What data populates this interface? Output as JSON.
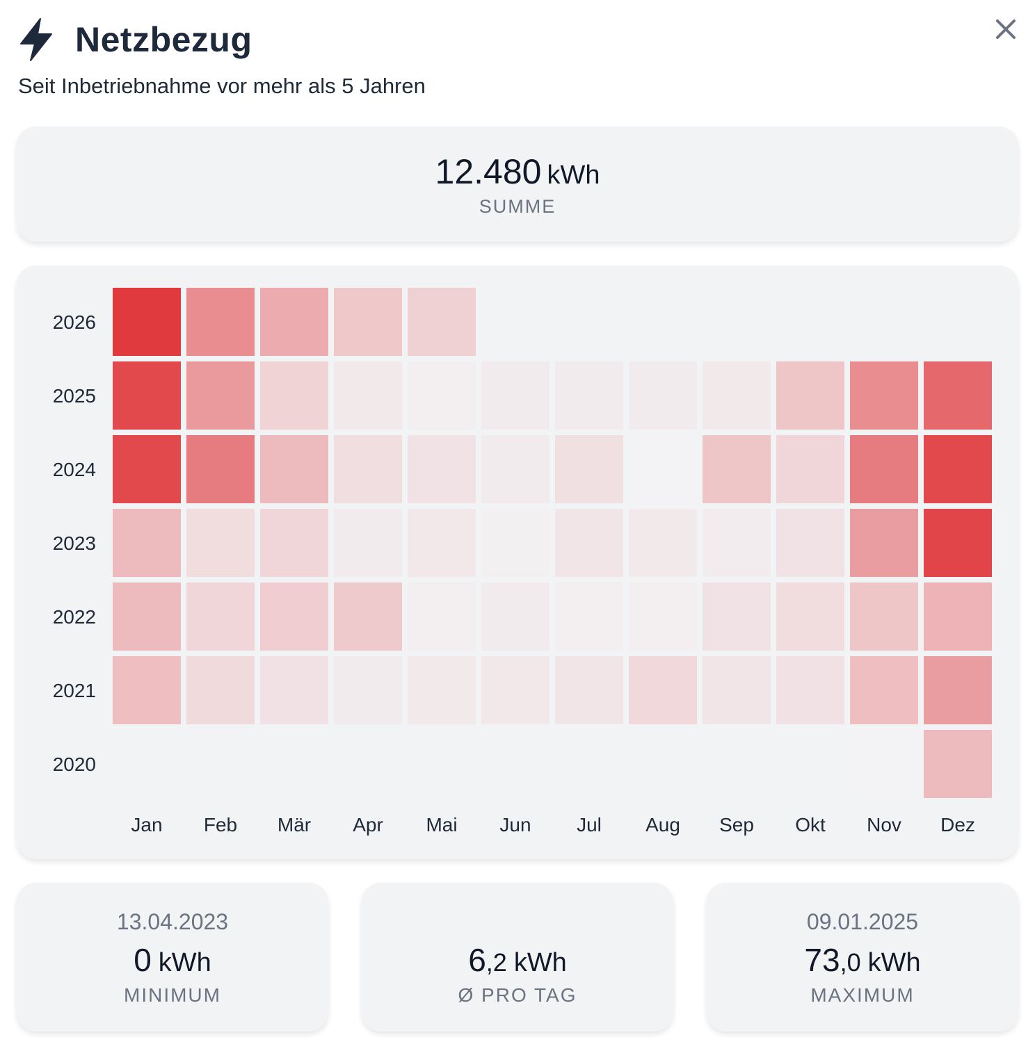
{
  "header": {
    "title": "Netzbezug",
    "subtitle": "Seit Inbetriebnahme vor mehr als 5 Jahren",
    "icon": "bolt-icon",
    "close_icon": "close-icon"
  },
  "summary": {
    "value": "12.480",
    "unit": "kWh",
    "label": "SUMME"
  },
  "stats": {
    "minimum": {
      "date": "13.04.2023",
      "int": "0",
      "dec": "",
      "unit": "kWh",
      "label": "MINIMUM"
    },
    "average": {
      "date": "",
      "int": "6",
      "dec": ",2",
      "unit": "kWh",
      "label": "Ø PRO TAG"
    },
    "maximum": {
      "date": "09.01.2025",
      "int": "73",
      "dec": ",0",
      "unit": "kWh",
      "label": "MAXIMUM"
    }
  },
  "colors": {
    "accent": "#e03a3e",
    "card_bg": "#f2f3f5",
    "empty_cell": "#f2f3f5"
  },
  "chart_data": {
    "type": "heatmap",
    "title": "",
    "x_categories": [
      "Jan",
      "Feb",
      "Mär",
      "Apr",
      "Mai",
      "Jun",
      "Jul",
      "Aug",
      "Sep",
      "Okt",
      "Nov",
      "Dez"
    ],
    "y_categories": [
      "2026",
      "2025",
      "2024",
      "2023",
      "2022",
      "2021",
      "2020"
    ],
    "value_scale": "relative intensity 0–1",
    "values": [
      [
        1.0,
        0.55,
        0.38,
        0.23,
        0.18,
        null,
        null,
        null,
        null,
        null,
        null,
        null
      ],
      [
        0.92,
        0.48,
        0.17,
        0.05,
        0.02,
        0.04,
        0.04,
        0.04,
        0.05,
        0.24,
        0.55,
        0.75
      ],
      [
        0.92,
        0.64,
        0.3,
        0.11,
        0.08,
        0.04,
        0.1,
        0.0,
        0.24,
        0.15,
        0.64,
        0.92
      ],
      [
        0.3,
        0.12,
        0.15,
        0.04,
        0.06,
        0.01,
        0.07,
        0.05,
        0.03,
        0.08,
        0.46,
        0.94
      ],
      [
        0.3,
        0.15,
        0.2,
        0.22,
        0.02,
        0.04,
        0.02,
        0.02,
        0.08,
        0.12,
        0.24,
        0.34
      ],
      [
        0.28,
        0.13,
        0.09,
        0.04,
        0.05,
        0.06,
        0.07,
        0.14,
        0.07,
        0.09,
        0.28,
        0.46
      ],
      [
        null,
        null,
        null,
        null,
        null,
        null,
        null,
        null,
        null,
        null,
        0.0,
        0.3
      ]
    ]
  }
}
